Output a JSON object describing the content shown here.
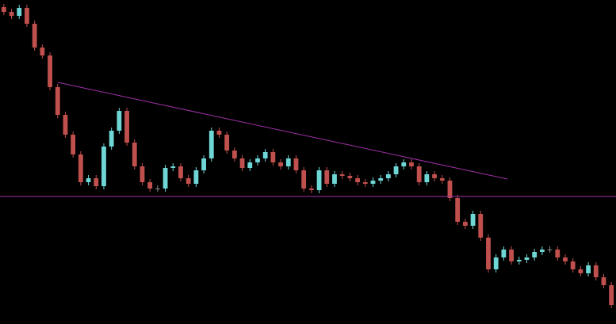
{
  "chart_data": {
    "type": "candlestick",
    "xlim": [
      -0.5,
      79.6
    ],
    "ylim": [
      0,
      409
    ],
    "up_color": "#6fd6d6",
    "down_color": "#c0504d",
    "flat_color": "#8a8a8a",
    "line_color": "#a030a8",
    "open": [
      400,
      394,
      389,
      399,
      379,
      349,
      339,
      299,
      264,
      239,
      214,
      179,
      184,
      174,
      224,
      244,
      269,
      229,
      199,
      179,
      171,
      171,
      197,
      199,
      184,
      177,
      194,
      209,
      244,
      239,
      219,
      209,
      197,
      204,
      209,
      217,
      204,
      199,
      209,
      194,
      171,
      169,
      194,
      177,
      189,
      187,
      184,
      179,
      177,
      181,
      184,
      189,
      199,
      204,
      199,
      179,
      189,
      184,
      181,
      159,
      129,
      124,
      139,
      109,
      69,
      84,
      94,
      79,
      81,
      84,
      91,
      94,
      94,
      84,
      79,
      69,
      64,
      74,
      59,
      49
    ],
    "high": [
      404,
      398,
      403,
      403,
      383,
      353,
      343,
      303,
      268,
      243,
      218,
      188,
      188,
      228,
      248,
      273,
      273,
      233,
      203,
      183,
      175,
      201,
      203,
      203,
      188,
      198,
      213,
      248,
      248,
      243,
      223,
      213,
      208,
      213,
      221,
      221,
      208,
      213,
      213,
      198,
      175,
      198,
      198,
      193,
      193,
      191,
      188,
      183,
      185,
      188,
      193,
      203,
      208,
      208,
      203,
      193,
      193,
      188,
      185,
      163,
      133,
      143,
      143,
      113,
      88,
      98,
      98,
      85,
      88,
      95,
      98,
      98,
      98,
      88,
      83,
      73,
      78,
      78,
      63,
      53
    ],
    "low": [
      390,
      385,
      385,
      375,
      345,
      335,
      295,
      260,
      235,
      210,
      175,
      175,
      170,
      170,
      220,
      240,
      225,
      195,
      175,
      167,
      167,
      167,
      193,
      180,
      173,
      173,
      190,
      205,
      235,
      215,
      205,
      193,
      193,
      200,
      205,
      200,
      195,
      195,
      190,
      167,
      165,
      165,
      173,
      173,
      183,
      180,
      175,
      173,
      173,
      177,
      180,
      185,
      195,
      195,
      175,
      175,
      180,
      177,
      155,
      125,
      120,
      120,
      105,
      65,
      65,
      80,
      75,
      75,
      77,
      80,
      87,
      90,
      80,
      75,
      65,
      60,
      60,
      55,
      45,
      20
    ],
    "close": [
      394,
      389,
      399,
      379,
      349,
      339,
      299,
      264,
      239,
      214,
      179,
      184,
      174,
      224,
      244,
      269,
      229,
      199,
      179,
      171,
      171,
      197,
      199,
      184,
      177,
      194,
      209,
      244,
      239,
      219,
      209,
      197,
      204,
      209,
      217,
      204,
      199,
      209,
      194,
      171,
      169,
      194,
      177,
      189,
      187,
      184,
      179,
      177,
      181,
      184,
      189,
      199,
      204,
      199,
      179,
      189,
      184,
      181,
      159,
      129,
      124,
      139,
      109,
      69,
      84,
      94,
      79,
      81,
      84,
      91,
      94,
      94,
      84,
      79,
      69,
      64,
      74,
      59,
      49,
      24
    ],
    "trendline": {
      "x": [
        7,
        65.5
      ],
      "y": [
        305,
        183
      ]
    },
    "hline": 161
  }
}
